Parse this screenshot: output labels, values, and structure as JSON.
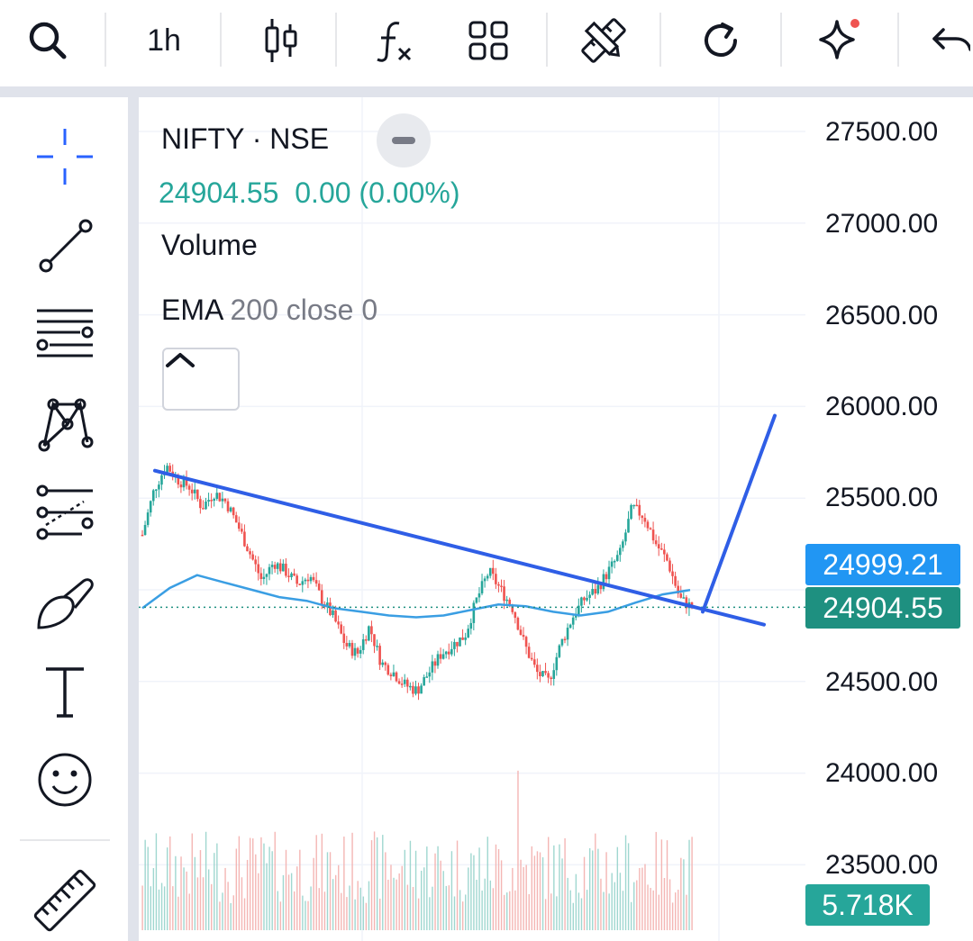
{
  "toolbar": {
    "interval": "1h",
    "icons": [
      "search-icon",
      "candles-icon",
      "indicators-icon",
      "layouts-icon",
      "drawing-tools-icon",
      "refresh-icon",
      "sparkle-icon",
      "undo-icon"
    ]
  },
  "left_tools": [
    "crosshair-icon",
    "trendline-icon",
    "parallel-lines-icon",
    "pattern-icon",
    "fib-icon",
    "brush-icon",
    "text-icon",
    "emoji-icon",
    "ruler-icon"
  ],
  "legend": {
    "title": "NIFTY · NSE",
    "price": "24904.55",
    "change": "0.00 (0.00%)",
    "volume_label": "Volume",
    "ema_label": "EMA",
    "ema_params": "200 close 0"
  },
  "colors": {
    "up": "#26a69a",
    "down": "#ef5350",
    "trendline": "#2f5ee6",
    "ema": "#3a9ee3",
    "crosshair_active": "#2962ff"
  },
  "price_axis": {
    "labels": [
      "27500.00",
      "27000.00",
      "26500.00",
      "26000.00",
      "25500.00",
      "24500.00",
      "24000.00",
      "23500.00"
    ]
  },
  "badges": {
    "ema_value": "24999.21",
    "last_price": "24904.55",
    "volume_value": "5.718K"
  },
  "chart_data": {
    "type": "candlestick",
    "symbol": "NIFTY",
    "exchange": "NSE",
    "interval": "1h",
    "ylim": [
      23300,
      27600
    ],
    "yticks": [
      23500,
      24000,
      24500,
      25000,
      25500,
      26000,
      26500,
      27000,
      27500
    ],
    "last_price": 24904.55,
    "ema200_last": 24999.21,
    "close_series_approx": [
      25300,
      25550,
      25680,
      25600,
      25560,
      25450,
      25530,
      25480,
      25350,
      25200,
      25050,
      25150,
      25100,
      25030,
      25080,
      24950,
      24850,
      24700,
      24650,
      24800,
      24600,
      24550,
      24480,
      24450,
      24550,
      24650,
      24700,
      24750,
      24950,
      25100,
      25000,
      24900,
      24700,
      24550,
      24500,
      24700,
      24850,
      24950,
      25000,
      25100,
      25200,
      25450,
      25400,
      25250,
      25150,
      24950,
      24904.55
    ],
    "ema_series_approx": [
      24900,
      25010,
      25080,
      25040,
      25000,
      24960,
      24940,
      24900,
      24880,
      24860,
      24850,
      24860,
      24890,
      24920,
      24910,
      24880,
      24860,
      24880,
      24930,
      24975,
      24999.21
    ],
    "drawings": [
      {
        "type": "trendline",
        "from": 25650,
        "to": 24810
      },
      {
        "type": "projection",
        "from": 24880,
        "to": 25950
      }
    ],
    "volume_last": "5.718K"
  }
}
